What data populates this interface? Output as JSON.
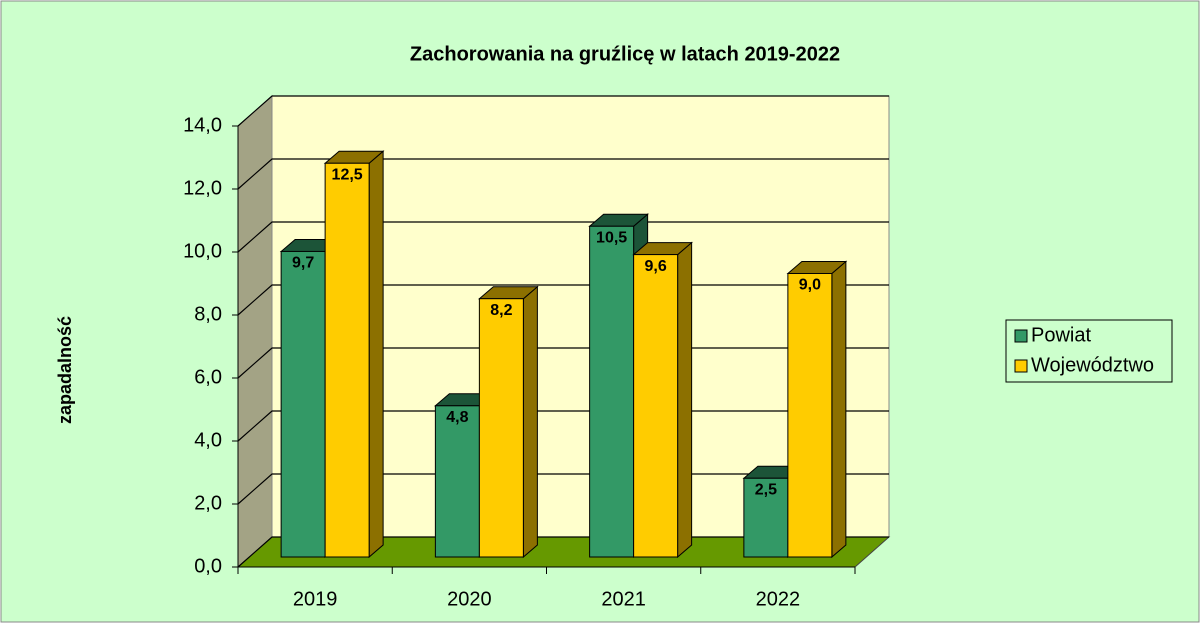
{
  "chart_data": {
    "type": "bar3d",
    "title": "Zachorowania na gruźlicę w latach 2019-2022",
    "y_label": "zapadalność",
    "categories": [
      "2019",
      "2020",
      "2021",
      "2022"
    ],
    "series": [
      {
        "name": "Powiat",
        "color": "#339966",
        "values": [
          9.7,
          4.8,
          10.5,
          2.5
        ],
        "value_labels": [
          "9,7",
          "4,8",
          "10,5",
          "2,5"
        ]
      },
      {
        "name": "Województwo",
        "color": "#ffcc00",
        "values": [
          12.5,
          8.2,
          9.6,
          9.0
        ],
        "value_labels": [
          "12,5",
          "8,2",
          "9,6",
          "9,0"
        ]
      }
    ],
    "ylim": [
      0,
      14
    ],
    "yticks": [
      {
        "value": 0,
        "label": "0,0"
      },
      {
        "value": 2,
        "label": "2,0"
      },
      {
        "value": 4,
        "label": "4,0"
      },
      {
        "value": 6,
        "label": "6,0"
      },
      {
        "value": 8,
        "label": "8,0"
      },
      {
        "value": 10,
        "label": "10,0"
      },
      {
        "value": 12,
        "label": "12,0"
      },
      {
        "value": 14,
        "label": "14,0"
      }
    ],
    "grid": true,
    "legend": "right"
  }
}
